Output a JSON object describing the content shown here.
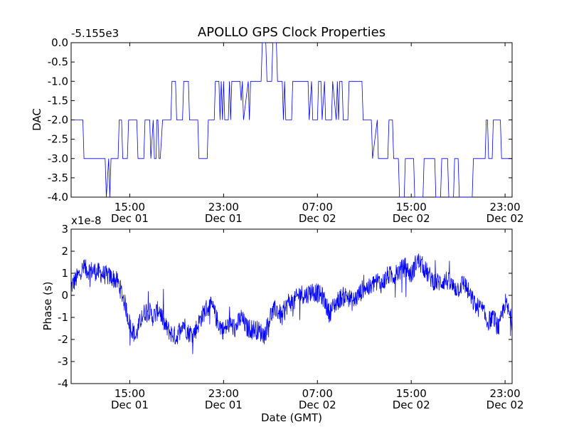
{
  "title": "APOLLO GPS Clock Properties",
  "xlabel": "Date (GMT)",
  "x_ticks": [
    {
      "time": "15:00",
      "date": "Dec 01",
      "hour": 15
    },
    {
      "time": "23:00",
      "date": "Dec 01",
      "hour": 23
    },
    {
      "time": "07:00",
      "date": "Dec 02",
      "hour": 31
    },
    {
      "time": "15:00",
      "date": "Dec 02",
      "hour": 39
    },
    {
      "time": "23:00",
      "date": "Dec 02",
      "hour": 47
    }
  ],
  "chart_data": [
    {
      "type": "line",
      "name": "dac-plot",
      "ylabel": "DAC",
      "offset_label": "-5.155e3",
      "offset_value": -5155,
      "xlim_hours": [
        10.0,
        47.6
      ],
      "ylim": [
        -4.0,
        0.0
      ],
      "yticks": [
        "0.0",
        "-0.5",
        "-1.0",
        "-1.5",
        "-2.0",
        "-2.5",
        "-3.0",
        "-3.5",
        "-4.0"
      ],
      "ytick_values": [
        0,
        -0.5,
        -1.0,
        -1.5,
        -2.0,
        -2.5,
        -3.0,
        -3.5,
        -4.0
      ],
      "color": "#0000ff",
      "x_hours": [
        10.0,
        11.0,
        11.1,
        12.9,
        13.0,
        13.2,
        13.3,
        13.4,
        13.5,
        14.0,
        14.1,
        14.3,
        14.4,
        14.8,
        14.9,
        15.6,
        15.7,
        16.2,
        16.3,
        16.7,
        16.8,
        17.0,
        17.1,
        17.25,
        17.3,
        17.4,
        17.5,
        17.6,
        17.8,
        18.5,
        18.6,
        18.9,
        19.0,
        19.5,
        19.6,
        20.0,
        20.1,
        20.8,
        20.9,
        21.6,
        21.7,
        22.2,
        22.3,
        22.6,
        22.7,
        22.8,
        22.9,
        23.0,
        23.1,
        23.4,
        23.5,
        23.6,
        23.7,
        24.4,
        24.5,
        24.6,
        24.7,
        25.1,
        25.2,
        25.3,
        25.5,
        26.2,
        26.3,
        26.6,
        26.7,
        27.1,
        27.2,
        27.5,
        27.6,
        28.0,
        28.1,
        28.2,
        28.3,
        28.8,
        28.9,
        30.2,
        30.3,
        30.5,
        30.6,
        31.0,
        31.1,
        31.3,
        31.4,
        31.6,
        31.7,
        32.2,
        32.3,
        32.6,
        32.7,
        32.8,
        32.9,
        33.1,
        33.2,
        33.6,
        33.7,
        34.8,
        34.9,
        35.6,
        35.7,
        36.1,
        36.2,
        37.0,
        37.1,
        37.4,
        37.5,
        37.9,
        38.0,
        38.4,
        38.5,
        39.2,
        39.3,
        40.0,
        40.1,
        41.0,
        41.1,
        41.5,
        41.6,
        42.1,
        42.2,
        42.6,
        42.7,
        43.0,
        43.1,
        44.2,
        44.3,
        45.3,
        45.4,
        45.5,
        45.6,
        45.9,
        46.0,
        46.6,
        46.7,
        47.6
      ],
      "y_values": [
        -2.0,
        -2.0,
        -3.0,
        -3.0,
        -4.0,
        -3.0,
        -4.0,
        -3.0,
        -3.0,
        -3.0,
        -2.0,
        -2.0,
        -3.0,
        -3.0,
        -2.0,
        -2.0,
        -3.0,
        -3.0,
        -2.0,
        -2.0,
        -3.0,
        -2.0,
        -3.0,
        -3.0,
        -2.0,
        -2.0,
        -3.0,
        -3.0,
        -2.0,
        -2.0,
        -1.0,
        -1.0,
        -2.0,
        -2.0,
        -1.0,
        -1.0,
        -2.0,
        -2.0,
        -3.0,
        -3.0,
        -2.0,
        -2.0,
        -1.0,
        -1.0,
        -2.0,
        -1.0,
        -2.0,
        -1.0,
        -2.0,
        -2.0,
        -1.0,
        -2.0,
        -1.0,
        -1.0,
        -1.5,
        -1.0,
        -2.0,
        -1.0,
        -2.0,
        -1.0,
        -1.0,
        -1.0,
        0.0,
        0.0,
        -1.0,
        -1.0,
        0.0,
        0.0,
        -1.0,
        -1.0,
        -2.0,
        -1.0,
        -2.0,
        -2.0,
        -1.0,
        -1.0,
        -2.0,
        -1.0,
        -2.0,
        -2.0,
        -1.0,
        -1.0,
        -2.0,
        -1.0,
        -2.0,
        -2.0,
        -1.0,
        -2.0,
        -1.0,
        -2.0,
        -1.0,
        -1.0,
        -2.0,
        -2.0,
        -1.0,
        -1.0,
        -2.0,
        -2.0,
        -3.0,
        -2.0,
        -3.0,
        -3.0,
        -2.0,
        -2.0,
        -3.0,
        -3.0,
        -4.0,
        -4.0,
        -3.0,
        -3.0,
        -4.0,
        -4.0,
        -3.0,
        -3.0,
        -4.0,
        -4.0,
        -3.0,
        -3.0,
        -4.0,
        -4.0,
        -3.0,
        -3.0,
        -4.0,
        -4.0,
        -3.0,
        -3.0,
        -2.0,
        -2.0,
        -3.0,
        -3.0,
        -2.0,
        -2.0,
        -3.0,
        -3.0
      ]
    },
    {
      "type": "line",
      "name": "phase-plot",
      "ylabel": "Phase (s)",
      "offset_label": "x1e-8",
      "scale": 1e-08,
      "xlim_hours": [
        10.0,
        47.6
      ],
      "ylim": [
        -4,
        3
      ],
      "yticks": [
        "3",
        "2",
        "1",
        "0",
        "-1",
        "-2",
        "-3",
        "-4"
      ],
      "ytick_values": [
        3,
        2,
        1,
        0,
        -1,
        -2,
        -3,
        -4
      ],
      "color": "#0000ff",
      "x_hours": [
        10.0,
        11.0,
        12.0,
        13.0,
        13.5,
        14.0,
        14.5,
        15.0,
        15.5,
        16.0,
        16.5,
        17.0,
        17.5,
        18.0,
        18.5,
        19.0,
        19.5,
        20.0,
        20.5,
        21.0,
        21.5,
        22.0,
        22.5,
        23.0,
        23.5,
        24.0,
        24.5,
        25.0,
        25.5,
        26.0,
        26.5,
        27.0,
        27.5,
        28.0,
        28.5,
        29.0,
        29.5,
        30.0,
        30.5,
        31.0,
        31.5,
        32.0,
        32.5,
        33.0,
        33.5,
        34.0,
        34.5,
        35.0,
        35.5,
        36.0,
        36.5,
        37.0,
        37.5,
        38.0,
        38.5,
        39.0,
        39.5,
        40.0,
        40.5,
        41.0,
        41.5,
        42.0,
        42.5,
        43.0,
        43.5,
        44.0,
        44.5,
        45.0,
        45.5,
        46.0,
        46.5,
        47.0,
        47.6
      ],
      "y_values": [
        0.4,
        1.2,
        1.1,
        0.9,
        0.8,
        0.6,
        -0.2,
        -1.3,
        -1.9,
        -1.0,
        -0.6,
        -1.0,
        -0.6,
        -1.4,
        -1.7,
        -1.9,
        -1.2,
        -1.7,
        -1.7,
        -1.1,
        -0.6,
        -0.5,
        -1.2,
        -1.6,
        -1.3,
        -1.5,
        -1.0,
        -1.5,
        -1.5,
        -1.6,
        -1.8,
        -0.9,
        -0.6,
        -1.0,
        -0.3,
        -0.3,
        0.1,
        0.0,
        0.2,
        0.1,
        -0.1,
        -0.8,
        -0.4,
        -0.1,
        0.0,
        -0.3,
        0.0,
        0.4,
        0.3,
        0.7,
        0.5,
        0.9,
        0.9,
        1.1,
        1.3,
        0.9,
        1.6,
        1.3,
        0.9,
        0.6,
        0.6,
        0.7,
        0.4,
        0.3,
        0.6,
        0.0,
        -0.5,
        -0.6,
        -1.2,
        -1.0,
        -1.5,
        -0.3,
        -1.2
      ],
      "noise_amplitude": 0.45
    }
  ]
}
